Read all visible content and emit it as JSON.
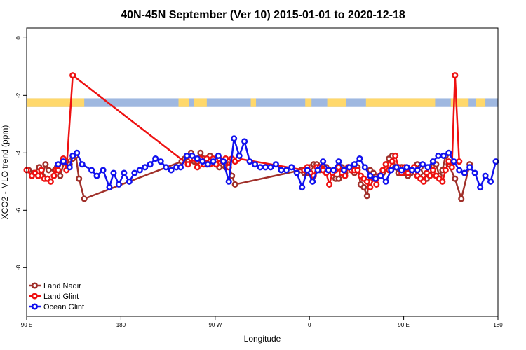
{
  "chart_data": {
    "type": "line",
    "title": "40N-45N September (Ver 10)   2015-01-01 to 2020-12-18",
    "xlabel": "Longitude",
    "ylabel": "XCO2 - MLO trend (ppm)",
    "x_ticks": [
      {
        "value": 90,
        "label": "90 E"
      },
      {
        "value": 180,
        "label": "180"
      },
      {
        "value": 270,
        "label": "90 W"
      },
      {
        "value": 360,
        "label": "0"
      },
      {
        "value": 450,
        "label": "90 E"
      },
      {
        "value": 540,
        "label": "180"
      }
    ],
    "y_ticks": [
      0,
      -2,
      -4,
      -6,
      -8
    ],
    "xlim": [
      90,
      540
    ],
    "ylim": [
      -9.7,
      0.35
    ],
    "grid": false,
    "legend_position": "bottom-left",
    "land_sea_strip": {
      "y_range": [
        -2.4,
        -2.1
      ],
      "land_color": "#ffd86b",
      "ocean_color": "#9fb8e0",
      "land_segments": [
        [
          90,
          145
        ],
        [
          235,
          245
        ],
        [
          250,
          262
        ],
        [
          304,
          309
        ],
        [
          356,
          362
        ],
        [
          377,
          395
        ],
        [
          414,
          480
        ],
        [
          495,
          512
        ],
        [
          519,
          528
        ]
      ]
    },
    "series": [
      {
        "name": "Land Nadir",
        "color": "#a0302a",
        "x": [
          92,
          97,
          102,
          105,
          108,
          111,
          117,
          119,
          122,
          126,
          128,
          131,
          134,
          137,
          140,
          145,
          238,
          241,
          244,
          247,
          250,
          253,
          256,
          259,
          262,
          265,
          268,
          271,
          274,
          280,
          283,
          286,
          289,
          352,
          355,
          358,
          361,
          364,
          367,
          370,
          373,
          376,
          379,
          382,
          385,
          388,
          391,
          394,
          397,
          400,
          403,
          406,
          409,
          412,
          415,
          418,
          421,
          427,
          430,
          433,
          436,
          439,
          442,
          445,
          448,
          451,
          454,
          457,
          460,
          463,
          466,
          469,
          472,
          475,
          478,
          481,
          484,
          487,
          490,
          493,
          499,
          505,
          513
        ],
        "y": [
          -4.6,
          -4.7,
          -4.5,
          -4.8,
          -4.4,
          -4.6,
          -4.6,
          -4.5,
          -4.8,
          -4.3,
          -4.3,
          -4.4,
          -4.2,
          -4.1,
          -4.9,
          -5.6,
          -4.3,
          -4.2,
          -4.3,
          -4.0,
          -4.3,
          -4.3,
          -4.0,
          -4.2,
          -4.4,
          -4.1,
          -4.3,
          -4.4,
          -4.5,
          -4.5,
          -4.4,
          -4.8,
          -5.1,
          -4.6,
          -4.7,
          -4.7,
          -4.5,
          -4.4,
          -4.4,
          -4.6,
          -4.6,
          -4.5,
          -4.6,
          -4.7,
          -4.9,
          -4.9,
          -4.5,
          -4.7,
          -4.5,
          -4.6,
          -4.7,
          -4.5,
          -5.1,
          -5.2,
          -5.5,
          -4.6,
          -4.7,
          -4.8,
          -4.7,
          -4.4,
          -4.2,
          -4.1,
          -4.5,
          -4.7,
          -4.5,
          -4.7,
          -4.8,
          -4.7,
          -4.5,
          -4.4,
          -4.5,
          -4.8,
          -4.9,
          -4.6,
          -4.3,
          -4.4,
          -4.8,
          -4.6,
          -4.1,
          -4.4,
          -4.9,
          -5.6,
          -4.4
        ]
      },
      {
        "name": "Land Glint",
        "color": "#ee1111",
        "x": [
          90,
          95,
          98,
          101,
          104,
          107,
          110,
          113,
          116,
          118,
          120,
          125,
          128,
          134,
          244,
          247,
          250,
          253,
          256,
          259,
          262,
          265,
          268,
          271,
          274,
          277,
          280,
          283,
          286,
          289,
          292,
          355,
          358,
          361,
          364,
          367,
          370,
          373,
          376,
          379,
          382,
          385,
          388,
          391,
          394,
          397,
          400,
          403,
          406,
          409,
          412,
          415,
          418,
          421,
          424,
          427,
          430,
          433,
          436,
          439,
          442,
          445,
          448,
          451,
          454,
          457,
          460,
          463,
          466,
          469,
          472,
          475,
          478,
          481,
          484,
          487,
          490,
          493,
          496,
          499,
          503
        ],
        "y": [
          -4.6,
          -4.8,
          -4.7,
          -4.8,
          -4.6,
          -4.9,
          -4.9,
          -5.0,
          -4.8,
          -4.6,
          -4.6,
          -4.2,
          -4.6,
          -1.3,
          -4.4,
          -4.2,
          -4.2,
          -4.5,
          -4.2,
          -4.4,
          -4.2,
          -4.4,
          -4.2,
          -4.4,
          -4.2,
          -4.3,
          -4.2,
          -4.5,
          -4.2,
          -4.3,
          -4.2,
          -4.6,
          -4.5,
          -4.7,
          -4.8,
          -4.5,
          -4.5,
          -4.6,
          -4.7,
          -5.1,
          -4.7,
          -4.6,
          -4.5,
          -4.7,
          -4.8,
          -4.5,
          -4.6,
          -4.6,
          -4.6,
          -4.8,
          -4.9,
          -5.0,
          -5.2,
          -4.9,
          -5.1,
          -4.8,
          -4.6,
          -4.4,
          -4.6,
          -4.3,
          -4.1,
          -4.5,
          -4.7,
          -4.5,
          -4.7,
          -4.6,
          -4.5,
          -4.8,
          -4.9,
          -5.0,
          -4.7,
          -4.8,
          -4.6,
          -4.8,
          -4.9,
          -5.0,
          -4.6,
          -4.3,
          -4.5,
          -1.3,
          -4.3
        ]
      },
      {
        "name": "Ocean Glint",
        "color": "#1111ee",
        "x": [
          120,
          125,
          131,
          134,
          138,
          143,
          152,
          157,
          163,
          169,
          173,
          178,
          183,
          188,
          193,
          198,
          203,
          208,
          213,
          218,
          223,
          228,
          233,
          237,
          243,
          248,
          253,
          258,
          263,
          268,
          273,
          278,
          283,
          288,
          293,
          298,
          303,
          308,
          313,
          318,
          323,
          328,
          333,
          338,
          343,
          348,
          353,
          358,
          363,
          368,
          373,
          378,
          383,
          388,
          393,
          398,
          403,
          408,
          413,
          418,
          423,
          428,
          433,
          438,
          443,
          448,
          453,
          458,
          463,
          468,
          473,
          478,
          483,
          488,
          493,
          498,
          503,
          508,
          513,
          518,
          523,
          528,
          533,
          538
        ],
        "y": [
          -4.4,
          -4.3,
          -4.5,
          -4.1,
          -4.0,
          -4.4,
          -4.6,
          -4.8,
          -4.6,
          -5.2,
          -4.7,
          -5.1,
          -4.7,
          -5.0,
          -4.7,
          -4.6,
          -4.5,
          -4.4,
          -4.2,
          -4.3,
          -4.5,
          -4.6,
          -4.5,
          -4.5,
          -4.1,
          -4.1,
          -4.2,
          -4.3,
          -4.4,
          -4.3,
          -4.1,
          -4.3,
          -5.0,
          -3.5,
          -4.1,
          -3.6,
          -4.3,
          -4.4,
          -4.5,
          -4.5,
          -4.5,
          -4.4,
          -4.6,
          -4.6,
          -4.5,
          -4.7,
          -5.2,
          -4.6,
          -5.0,
          -4.6,
          -4.3,
          -4.6,
          -4.6,
          -4.3,
          -4.6,
          -4.5,
          -4.4,
          -4.2,
          -4.5,
          -4.8,
          -4.9,
          -4.8,
          -5.0,
          -4.6,
          -4.5,
          -4.6,
          -4.5,
          -4.6,
          -4.6,
          -4.4,
          -4.5,
          -4.3,
          -4.1,
          -4.1,
          -4.0,
          -4.3,
          -4.6,
          -4.7,
          -4.5,
          -4.7,
          -5.2,
          -4.8,
          -5.0,
          -4.3
        ]
      }
    ]
  }
}
